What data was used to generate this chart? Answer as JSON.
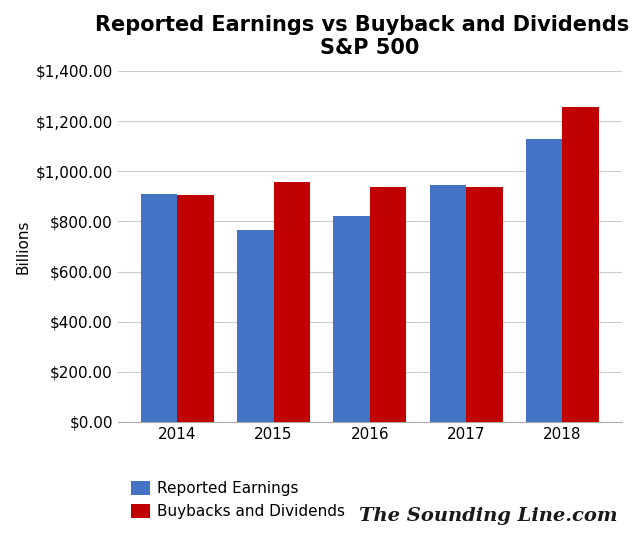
{
  "title": "Reported Earnings vs Buyback and Dividends -\nS&P 500",
  "years": [
    "2014",
    "2015",
    "2016",
    "2017",
    "2018"
  ],
  "reported_earnings": [
    910,
    765,
    820,
    945,
    1130
  ],
  "buybacks_dividends": [
    905,
    955,
    935,
    935,
    1255
  ],
  "bar_color_earnings": "#4472C4",
  "bar_color_buybacks": "#C00000",
  "ylabel": "Billions",
  "ylim": [
    0,
    1400
  ],
  "ytick_step": 200,
  "legend_labels": [
    "Reported Earnings",
    "Buybacks and Dividends"
  ],
  "watermark": "The Sounding Line.com",
  "title_fontsize": 15,
  "axis_fontsize": 11,
  "tick_fontsize": 11,
  "legend_fontsize": 11,
  "background_color": "#FFFFFF",
  "grid_color": "#CCCCCC"
}
